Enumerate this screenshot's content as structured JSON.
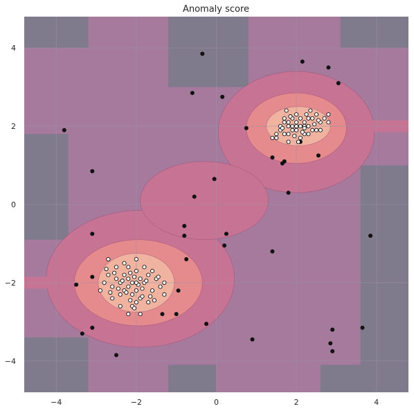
{
  "chart_data": {
    "type": "contour",
    "title": "Anomaly score",
    "xlabel": "",
    "ylabel": "",
    "xlim": [
      -4.8,
      4.8
    ],
    "ylim": [
      -4.8,
      4.8
    ],
    "x_ticks": [
      "−4",
      "−2",
      "0",
      "2",
      "4"
    ],
    "x_tick_values": [
      -4,
      -2,
      0,
      2,
      4
    ],
    "y_ticks": [
      "−4",
      "−2",
      "0",
      "2",
      "4"
    ],
    "y_tick_values": [
      -4,
      -2,
      0,
      2,
      4
    ],
    "grid": true,
    "colors": {
      "background_level": "#7f7a8c",
      "level_1": "#a57a9c",
      "level_2": "#c77494",
      "level_3": "#e58a8d",
      "level_4": "#efb3a0",
      "grid": "#9b93a6",
      "outlier_point": "#111111",
      "inlier_fill": "#ffffff",
      "inlier_edge": "#111111"
    },
    "inliers": {
      "cluster_centers": [
        [
          2.0,
          2.0
        ],
        [
          -2.0,
          -2.0
        ]
      ],
      "points": [
        [
          1.6,
          1.9
        ],
        [
          1.7,
          2.1
        ],
        [
          1.8,
          1.8
        ],
        [
          1.9,
          2.2
        ],
        [
          2.0,
          1.9
        ],
        [
          2.1,
          2.0
        ],
        [
          2.2,
          2.1
        ],
        [
          2.3,
          1.8
        ],
        [
          2.4,
          2.2
        ],
        [
          2.5,
          1.9
        ],
        [
          1.5,
          1.7
        ],
        [
          1.6,
          2.0
        ],
        [
          1.7,
          1.8
        ],
        [
          1.8,
          2.0
        ],
        [
          1.9,
          1.9
        ],
        [
          2.0,
          2.3
        ],
        [
          2.1,
          1.7
        ],
        [
          2.2,
          2.0
        ],
        [
          2.3,
          2.2
        ],
        [
          2.4,
          1.9
        ],
        [
          2.6,
          2.1
        ],
        [
          2.7,
          2.2
        ],
        [
          1.4,
          1.7
        ],
        [
          1.5,
          1.8
        ],
        [
          1.7,
          2.2
        ],
        [
          1.8,
          1.6
        ],
        [
          1.9,
          2.0
        ],
        [
          2.0,
          2.1
        ],
        [
          2.1,
          2.2
        ],
        [
          2.2,
          1.8
        ],
        [
          2.3,
          2.0
        ],
        [
          2.5,
          2.3
        ],
        [
          2.6,
          1.9
        ],
        [
          2.8,
          2.3
        ],
        [
          2.8,
          2.1
        ],
        [
          1.75,
          2.4
        ],
        [
          2.05,
          1.6
        ],
        [
          2.35,
          2.4
        ],
        [
          1.85,
          2.25
        ],
        [
          2.15,
          1.85
        ],
        [
          2.45,
          2.05
        ],
        [
          1.95,
          1.75
        ],
        [
          2.25,
          2.3
        ],
        [
          1.65,
          1.95
        ],
        [
          2.55,
          2.15
        ],
        [
          1.8,
          2.1
        ],
        [
          2.0,
          2.0
        ],
        [
          2.2,
          1.95
        ],
        [
          -2.1,
          -2.0
        ],
        [
          -2.3,
          -1.8
        ],
        [
          -2.0,
          -2.2
        ],
        [
          -1.9,
          -1.9
        ],
        [
          -2.2,
          -2.1
        ],
        [
          -2.4,
          -2.0
        ],
        [
          -1.8,
          -2.0
        ],
        [
          -2.0,
          -1.7
        ],
        [
          -2.1,
          -2.3
        ],
        [
          -2.3,
          -2.2
        ],
        [
          -1.7,
          -1.8
        ],
        [
          -2.5,
          -1.9
        ],
        [
          -2.6,
          -2.1
        ],
        [
          -1.6,
          -2.2
        ],
        [
          -2.0,
          -2.5
        ],
        [
          -2.2,
          -1.6
        ],
        [
          -1.9,
          -2.4
        ],
        [
          -2.4,
          -2.3
        ],
        [
          -1.5,
          -1.9
        ],
        [
          -2.7,
          -1.8
        ],
        [
          -2.8,
          -2.0
        ],
        [
          -1.4,
          -2.1
        ],
        [
          -2.1,
          -2.6
        ],
        [
          -2.3,
          -1.5
        ],
        [
          -1.8,
          -1.6
        ],
        [
          -2.6,
          -2.4
        ],
        [
          -1.7,
          -2.5
        ],
        [
          -2.0,
          -1.4
        ],
        [
          -2.9,
          -2.2
        ],
        [
          -1.3,
          -2.3
        ],
        [
          -2.2,
          -2.8
        ],
        [
          -1.9,
          -2.8
        ],
        [
          -2.5,
          -1.6
        ],
        [
          -1.6,
          -1.7
        ],
        [
          -2.4,
          -2.6
        ],
        [
          -2.75,
          -1.65
        ],
        [
          -1.55,
          -2.45
        ],
        [
          -2.15,
          -2.45
        ],
        [
          -1.85,
          -2.15
        ],
        [
          -2.35,
          -1.95
        ],
        [
          -2.05,
          -1.85
        ],
        [
          -1.95,
          -2.05
        ],
        [
          -2.25,
          -2.25
        ],
        [
          -1.75,
          -1.95
        ],
        [
          -2.45,
          -2.15
        ],
        [
          -2.65,
          -2.25
        ],
        [
          -1.45,
          -1.85
        ],
        [
          -2.05,
          -2.65
        ],
        [
          -2.55,
          -1.75
        ],
        [
          -1.65,
          -2.35
        ],
        [
          -2.15,
          -1.75
        ],
        [
          -1.85,
          -2.35
        ],
        [
          -2.7,
          -1.4
        ],
        [
          -1.3,
          -2.0
        ],
        [
          -2.0,
          -2.0
        ],
        [
          -2.2,
          -1.9
        ]
      ]
    },
    "outliers": [
      [
        -3.8,
        1.9
      ],
      [
        -0.35,
        3.85
      ],
      [
        0.15,
        2.75
      ],
      [
        -0.6,
        2.85
      ],
      [
        2.15,
        3.65
      ],
      [
        2.8,
        3.5
      ],
      [
        3.05,
        3.1
      ],
      [
        0.75,
        1.95
      ],
      [
        -3.1,
        0.85
      ],
      [
        -0.05,
        0.65
      ],
      [
        -0.55,
        0.2
      ],
      [
        1.4,
        1.2
      ],
      [
        1.8,
        0.3
      ],
      [
        1.7,
        1.1
      ],
      [
        1.65,
        1.05
      ],
      [
        2.55,
        1.25
      ],
      [
        2.1,
        1.6
      ],
      [
        -0.8,
        -0.55
      ],
      [
        -0.8,
        -0.8
      ],
      [
        0.25,
        -0.75
      ],
      [
        0.2,
        -1.05
      ],
      [
        -3.1,
        -0.75
      ],
      [
        -0.75,
        -1.4
      ],
      [
        1.4,
        -1.2
      ],
      [
        3.85,
        -0.8
      ],
      [
        -3.1,
        -1.85
      ],
      [
        -3.5,
        -2.05
      ],
      [
        -0.95,
        -2.2
      ],
      [
        -1.35,
        -2.8
      ],
      [
        -1.0,
        -2.8
      ],
      [
        -0.25,
        -3.05
      ],
      [
        -3.1,
        -3.15
      ],
      [
        -3.35,
        -3.3
      ],
      [
        0.9,
        -3.45
      ],
      [
        2.9,
        -3.2
      ],
      [
        3.65,
        -3.15
      ],
      [
        2.85,
        -3.55
      ],
      [
        2.9,
        -3.75
      ],
      [
        -2.5,
        -3.85
      ]
    ]
  }
}
